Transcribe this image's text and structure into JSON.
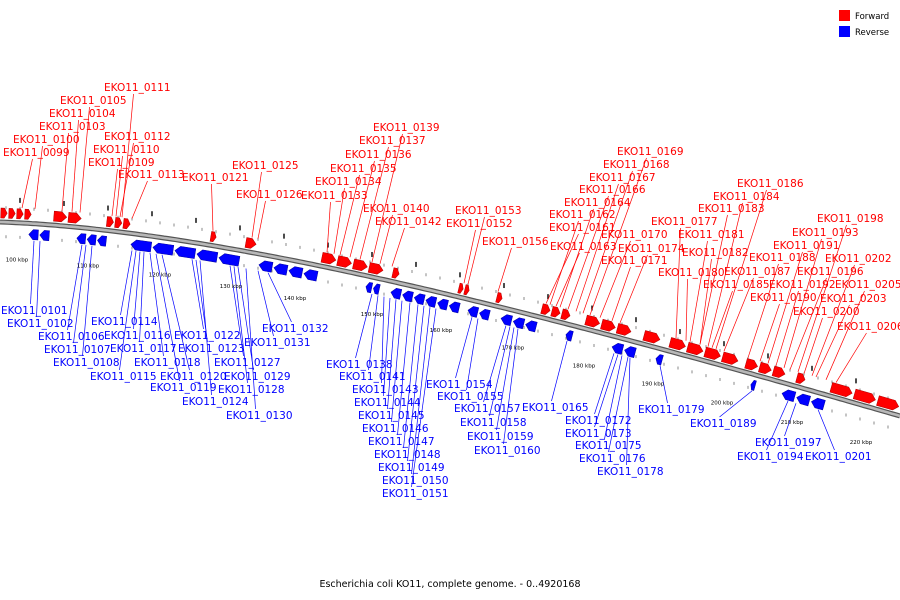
{
  "legend": {
    "forward_label": "Forward",
    "reverse_label": "Reverse",
    "forward_color": "#ff0000",
    "reverse_color": "#0000ff"
  },
  "caption": "Escherichia coli KO11, complete genome. - 0..4920168",
  "axis_ticks": [
    "100 kbp",
    "110 kbp",
    "120 kbp",
    "130 kbp",
    "140 kbp",
    "150 kbp",
    "160 kbp",
    "170 kbp",
    "180 kbp",
    "190 kbp",
    "200 kbp",
    "210 kbp",
    "220 kbp"
  ],
  "forward_genes": [
    "EKO11_0099",
    "EKO11_0100",
    "EKO11_0103",
    "EKO11_0104",
    "EKO11_0105",
    "EKO11_0109",
    "EKO11_0110",
    "EKO11_0111",
    "EKO11_0112",
    "EKO11_0113",
    "EKO11_0121",
    "EKO11_0125",
    "EKO11_0126",
    "EKO11_0133",
    "EKO11_0134",
    "EKO11_0135",
    "EKO11_0136",
    "EKO11_0137",
    "EKO11_0139",
    "EKO11_0140",
    "EKO11_0142",
    "EKO11_0152",
    "EKO11_0153",
    "EKO11_0156",
    "EKO11_0161",
    "EKO11_0162",
    "EKO11_0163",
    "EKO11_0164",
    "EKO11_0166",
    "EKO11_0167",
    "EKO11_0168",
    "EKO11_0169",
    "EKO11_0170",
    "EKO11_0171",
    "EKO11_0174",
    "EKO11_0177",
    "EKO11_0180",
    "EKO11_0181",
    "EKO11_0182",
    "EKO11_0183",
    "EKO11_0184",
    "EKO11_0185",
    "EKO11_0186",
    "EKO11_0187",
    "EKO11_0188",
    "EKO11_0190",
    "EKO11_0191",
    "EKO11_0192",
    "EKO11_0193",
    "EKO11_0196",
    "EKO11_0198",
    "EKO11_0200",
    "EKO11_0202",
    "EKO11_0203",
    "EKO11_0205",
    "EKO11_0206"
  ],
  "reverse_genes": [
    "EKO11_0101",
    "EKO11_0102",
    "EKO11_0106",
    "EKO11_0107",
    "EKO11_0108",
    "EKO11_0114",
    "EKO11_0115",
    "EKO11_0116",
    "EKO11_0117",
    "EKO11_0118",
    "EKO11_0119",
    "EKO11_0120",
    "EKO11_0122",
    "EKO11_0123",
    "EKO11_0124",
    "EKO11_0127",
    "EKO11_0128",
    "EKO11_0129",
    "EKO11_0130",
    "EKO11_0131",
    "EKO11_0132",
    "EKO11_0138",
    "EKO11_0141",
    "EKO11_0143",
    "EKO11_0144",
    "EKO11_0145",
    "EKO11_0146",
    "EKO11_0147",
    "EKO11_0148",
    "EKO11_0149",
    "EKO11_0150",
    "EKO11_0151",
    "EKO11_0154",
    "EKO11_0155",
    "EKO11_0157",
    "EKO11_0158",
    "EKO11_0159",
    "EKO11_0160",
    "EKO11_0165",
    "EKO11_0172",
    "EKO11_0173",
    "EKO11_0175",
    "EKO11_0176",
    "EKO11_0178",
    "EKO11_0179",
    "EKO11_0189",
    "EKO11_0194",
    "EKO11_0197",
    "EKO11_0201"
  ]
}
